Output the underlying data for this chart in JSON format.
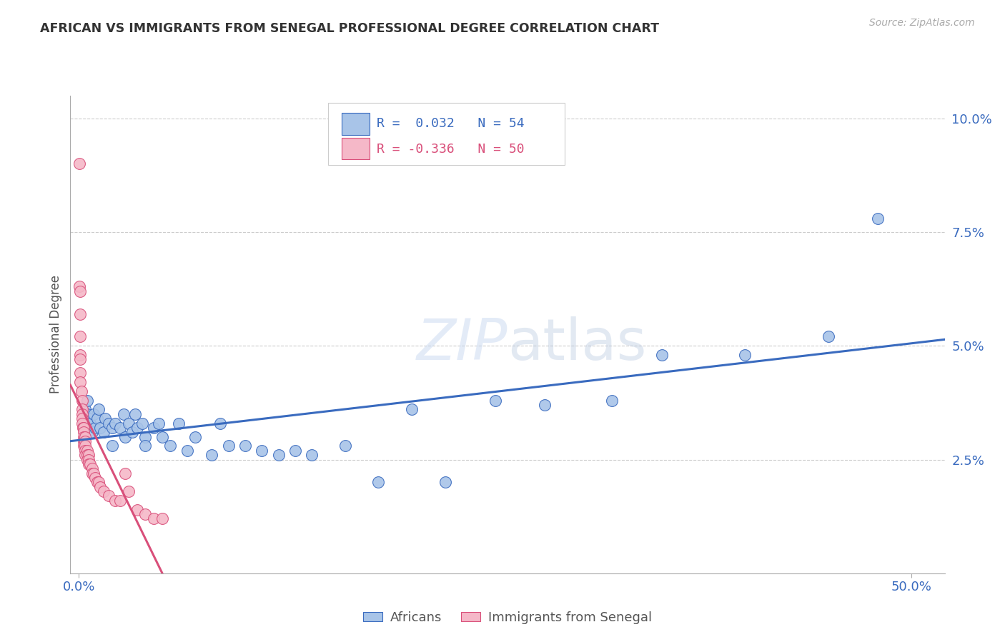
{
  "title": "AFRICAN VS IMMIGRANTS FROM SENEGAL PROFESSIONAL DEGREE CORRELATION CHART",
  "source": "Source: ZipAtlas.com",
  "ylabel": "Professional Degree",
  "ylim": [
    0.0,
    0.105
  ],
  "xlim": [
    -0.005,
    0.52
  ],
  "blue_color": "#a8c4e8",
  "pink_color": "#f5b8c8",
  "blue_line_color": "#3a6bbf",
  "pink_line_color": "#d94f7a",
  "watermark_color": "#d0ddf0",
  "blue_scatter_x": [
    0.003,
    0.004,
    0.005,
    0.005,
    0.006,
    0.007,
    0.008,
    0.009,
    0.01,
    0.011,
    0.012,
    0.013,
    0.015,
    0.016,
    0.018,
    0.02,
    0.02,
    0.022,
    0.025,
    0.027,
    0.028,
    0.03,
    0.032,
    0.034,
    0.035,
    0.038,
    0.04,
    0.04,
    0.045,
    0.048,
    0.05,
    0.055,
    0.06,
    0.065,
    0.07,
    0.08,
    0.085,
    0.09,
    0.1,
    0.11,
    0.12,
    0.13,
    0.14,
    0.16,
    0.18,
    0.2,
    0.22,
    0.25,
    0.28,
    0.32,
    0.35,
    0.4,
    0.45,
    0.48
  ],
  "blue_scatter_y": [
    0.033,
    0.036,
    0.035,
    0.038,
    0.034,
    0.033,
    0.031,
    0.035,
    0.032,
    0.034,
    0.036,
    0.032,
    0.031,
    0.034,
    0.033,
    0.032,
    0.028,
    0.033,
    0.032,
    0.035,
    0.03,
    0.033,
    0.031,
    0.035,
    0.032,
    0.033,
    0.03,
    0.028,
    0.032,
    0.033,
    0.03,
    0.028,
    0.033,
    0.027,
    0.03,
    0.026,
    0.033,
    0.028,
    0.028,
    0.027,
    0.026,
    0.027,
    0.026,
    0.028,
    0.02,
    0.036,
    0.02,
    0.038,
    0.037,
    0.038,
    0.048,
    0.048,
    0.052,
    0.078
  ],
  "pink_scatter_x": [
    0.0005,
    0.0005,
    0.001,
    0.001,
    0.001,
    0.001,
    0.001,
    0.001,
    0.001,
    0.0015,
    0.002,
    0.002,
    0.002,
    0.002,
    0.002,
    0.0025,
    0.003,
    0.003,
    0.003,
    0.003,
    0.003,
    0.004,
    0.004,
    0.004,
    0.004,
    0.004,
    0.005,
    0.005,
    0.005,
    0.006,
    0.006,
    0.006,
    0.007,
    0.008,
    0.008,
    0.009,
    0.01,
    0.011,
    0.012,
    0.013,
    0.015,
    0.018,
    0.022,
    0.025,
    0.028,
    0.03,
    0.035,
    0.04,
    0.045,
    0.05
  ],
  "pink_scatter_y": [
    0.09,
    0.063,
    0.062,
    0.057,
    0.052,
    0.048,
    0.047,
    0.044,
    0.042,
    0.04,
    0.038,
    0.036,
    0.035,
    0.034,
    0.033,
    0.032,
    0.032,
    0.031,
    0.03,
    0.029,
    0.028,
    0.03,
    0.029,
    0.028,
    0.027,
    0.026,
    0.027,
    0.026,
    0.025,
    0.026,
    0.025,
    0.024,
    0.024,
    0.023,
    0.022,
    0.022,
    0.021,
    0.02,
    0.02,
    0.019,
    0.018,
    0.017,
    0.016,
    0.016,
    0.022,
    0.018,
    0.014,
    0.013,
    0.012,
    0.012
  ],
  "ytick_vals": [
    0.025,
    0.05,
    0.075,
    0.1
  ],
  "ytick_labels": [
    "2.5%",
    "5.0%",
    "7.5%",
    "10.0%"
  ],
  "xtick_vals": [
    0.0,
    0.5
  ],
  "xtick_labels": [
    "0.0%",
    "50.0%"
  ]
}
